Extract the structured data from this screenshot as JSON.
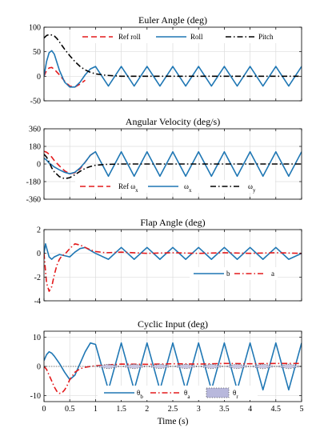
{
  "figure": {
    "xlabel": "Time (s)"
  },
  "chart_data": [
    {
      "type": "line",
      "title": "Euler Angle (deg)",
      "xlim": [
        0,
        5
      ],
      "ylim": [
        -50,
        100
      ],
      "y_ticks": [
        -50,
        0,
        50,
        100
      ],
      "y_tick_labels": [
        "-50",
        "0",
        "50",
        "100"
      ],
      "x_ticks": [
        0,
        0.5,
        1,
        1.5,
        2,
        2.5,
        3,
        3.5,
        4,
        4.5,
        5
      ],
      "x_tick_labels": [],
      "grid": true,
      "legend": "top",
      "series": [
        {
          "name": "Ref roll",
          "color": "#e41a1c",
          "style": "dash",
          "x": [
            0,
            0.05,
            0.1,
            0.15,
            0.2,
            0.3,
            0.4,
            0.5,
            0.6,
            0.7,
            0.8
          ],
          "y": [
            0,
            12,
            17,
            18,
            14,
            3,
            -10,
            -20,
            -22,
            -16,
            -8
          ]
        },
        {
          "name": "Roll",
          "color": "#1f77b4",
          "style": "solid",
          "x": [
            0,
            0.05,
            0.1,
            0.15,
            0.2,
            0.3,
            0.4,
            0.5,
            0.6,
            0.7,
            0.8,
            0.9,
            1.0,
            1.25,
            1.5,
            1.75,
            2.0,
            2.25,
            2.5,
            2.75,
            3.0,
            3.25,
            3.5,
            3.75,
            4.0,
            4.25,
            4.5,
            4.75,
            5.0
          ],
          "y": [
            0,
            30,
            48,
            52,
            45,
            12,
            -12,
            -22,
            -22,
            -12,
            3,
            15,
            20,
            -20,
            20,
            -20,
            20,
            -20,
            20,
            -20,
            20,
            -20,
            20,
            -20,
            20,
            -20,
            20,
            -20,
            20
          ]
        },
        {
          "name": "Pitch",
          "color": "#000000",
          "style": "dashdot",
          "x": [
            0,
            0.05,
            0.1,
            0.15,
            0.2,
            0.25,
            0.3,
            0.4,
            0.5,
            0.6,
            0.7,
            0.8,
            0.9,
            1.0,
            1.2,
            1.5,
            2.0,
            3.0,
            4.0,
            5.0
          ],
          "y": [
            78,
            83,
            85,
            84,
            82,
            77,
            70,
            55,
            42,
            30,
            20,
            13,
            8,
            5,
            2,
            0,
            0,
            0,
            0,
            0
          ]
        }
      ]
    },
    {
      "type": "line",
      "title": "Angular Velocity (deg/s)",
      "xlim": [
        0,
        5
      ],
      "ylim": [
        -360,
        360
      ],
      "y_ticks": [
        -360,
        -180,
        0,
        180,
        360
      ],
      "y_tick_labels": [
        "-360",
        "-180",
        "0",
        "180",
        "360"
      ],
      "x_ticks": [
        0,
        0.5,
        1,
        1.5,
        2,
        2.5,
        3,
        3.5,
        4,
        4.5,
        5
      ],
      "x_tick_labels": [],
      "grid": true,
      "legend": "bottom",
      "series": [
        {
          "name": "Ref ω",
          "subscript": "x",
          "color": "#e41a1c",
          "style": "dash",
          "x": [
            0,
            0.05,
            0.1,
            0.15,
            0.2,
            0.3,
            0.4,
            0.5,
            0.6,
            0.7,
            0.8,
            0.9,
            1.0
          ],
          "y": [
            130,
            120,
            100,
            70,
            35,
            -20,
            -70,
            -100,
            -90,
            -50,
            20,
            90,
            125
          ]
        },
        {
          "name": "ω",
          "subscript": "x",
          "color": "#1f77b4",
          "style": "solid",
          "x": [
            0,
            0.05,
            0.1,
            0.15,
            0.2,
            0.3,
            0.4,
            0.5,
            0.6,
            0.7,
            0.8,
            0.9,
            1.0,
            1.25,
            1.5,
            1.75,
            2.0,
            2.25,
            2.5,
            2.75,
            3.0,
            3.25,
            3.5,
            3.75,
            4.0,
            4.25,
            4.5,
            4.75,
            5.0
          ],
          "y": [
            60,
            40,
            10,
            -10,
            -30,
            -60,
            -85,
            -100,
            -85,
            -40,
            20,
            90,
            125,
            -125,
            125,
            -125,
            125,
            -125,
            125,
            -125,
            125,
            -125,
            125,
            -125,
            125,
            -125,
            125,
            -125,
            125
          ]
        },
        {
          "name": "ω",
          "subscript": "y",
          "color": "#000000",
          "style": "dashdot",
          "x": [
            0,
            0.05,
            0.1,
            0.15,
            0.2,
            0.3,
            0.4,
            0.5,
            0.6,
            0.7,
            0.8,
            0.9,
            1.0,
            1.2,
            1.5,
            2.0,
            3.0,
            4.0,
            5.0
          ],
          "y": [
            100,
            70,
            20,
            -40,
            -80,
            -130,
            -150,
            -140,
            -110,
            -75,
            -45,
            -25,
            -12,
            -4,
            0,
            0,
            0,
            0,
            0
          ]
        }
      ]
    },
    {
      "type": "line",
      "title": "Flap Angle (deg)",
      "xlim": [
        0,
        5
      ],
      "ylim": [
        -4,
        2
      ],
      "y_ticks": [
        -4,
        -2,
        0,
        2
      ],
      "y_tick_labels": [
        "-4",
        "-2",
        "0",
        "2"
      ],
      "x_ticks": [
        0,
        0.5,
        1,
        1.5,
        2,
        2.5,
        3,
        3.5,
        4,
        4.5,
        5
      ],
      "x_tick_labels": [],
      "grid": true,
      "legend": "right",
      "series": [
        {
          "name": "b",
          "color": "#1f77b4",
          "style": "solid",
          "x": [
            0,
            0.03,
            0.06,
            0.1,
            0.15,
            0.2,
            0.3,
            0.4,
            0.5,
            0.6,
            0.7,
            0.8,
            1.0,
            1.25,
            1.5,
            1.75,
            2.0,
            2.25,
            2.5,
            2.75,
            3.0,
            3.25,
            3.5,
            3.75,
            4.0,
            4.25,
            4.5,
            4.75,
            5.0
          ],
          "y": [
            0,
            0.8,
            0.3,
            -0.3,
            -0.5,
            -0.3,
            -0.1,
            -0.2,
            -0.3,
            0.1,
            0.4,
            0.5,
            0,
            -0.5,
            0.5,
            -0.5,
            0.5,
            -0.5,
            0.5,
            -0.5,
            0.5,
            -0.5,
            0.5,
            -0.5,
            0.5,
            -0.5,
            0.5,
            -0.5,
            0
          ]
        },
        {
          "name": "a",
          "color": "#e41a1c",
          "style": "dashdot",
          "x": [
            0,
            0.05,
            0.1,
            0.15,
            0.2,
            0.25,
            0.3,
            0.35,
            0.4,
            0.5,
            0.6,
            0.7,
            0.8,
            0.9,
            1.0,
            1.2,
            1.5,
            2.0,
            2.5,
            3.0,
            3.5,
            4.0,
            4.5,
            5.0
          ],
          "y": [
            0,
            -2.5,
            -3.2,
            -2.8,
            -1.8,
            -1.0,
            -0.5,
            -0.2,
            -0.1,
            0.4,
            0.8,
            0.7,
            0.5,
            0.3,
            0.15,
            0.05,
            0.1,
            0,
            0.05,
            0,
            0.05,
            0,
            0.05,
            0
          ]
        }
      ]
    },
    {
      "type": "line",
      "title": "Cyclic Input (deg)",
      "xlim": [
        0,
        5
      ],
      "ylim": [
        -12,
        12
      ],
      "y_ticks": [
        -10,
        0,
        10
      ],
      "y_tick_labels": [
        "-10",
        "0",
        "10"
      ],
      "x_ticks": [
        0,
        0.5,
        1,
        1.5,
        2,
        2.5,
        3,
        3.5,
        4,
        4.5,
        5
      ],
      "x_tick_labels": [
        "0",
        "0.5",
        "1",
        "1.5",
        "2",
        "2.5",
        "3",
        "3.5",
        "4",
        "4.5",
        "5"
      ],
      "grid": true,
      "legend": "bottom",
      "series": [
        {
          "name": "θ",
          "subscript": "b",
          "color": "#1f77b4",
          "style": "solid",
          "x": [
            0,
            0.05,
            0.1,
            0.15,
            0.2,
            0.3,
            0.4,
            0.5,
            0.6,
            0.7,
            0.8,
            0.9,
            1.0,
            1.25,
            1.5,
            1.75,
            2.0,
            2.25,
            2.5,
            2.75,
            3.0,
            3.25,
            3.5,
            3.75,
            4.0,
            4.25,
            4.5,
            4.75,
            5.0
          ],
          "y": [
            2,
            4,
            5,
            4.5,
            3.5,
            1,
            -2,
            -4.5,
            -3,
            1,
            5,
            8,
            7.5,
            -8,
            8,
            -8,
            8,
            -8,
            8,
            -8,
            8,
            -8,
            8,
            -8,
            8,
            -8,
            8,
            -8,
            8
          ]
        },
        {
          "name": "θ",
          "subscript": "a",
          "color": "#e41a1c",
          "style": "dashdot",
          "x": [
            0,
            0.05,
            0.1,
            0.15,
            0.2,
            0.25,
            0.3,
            0.35,
            0.4,
            0.45,
            0.5,
            0.6,
            0.7,
            0.8,
            0.9,
            1.0,
            1.2,
            1.5,
            2.0,
            2.5,
            3.0,
            3.5,
            4.0,
            4.5,
            5.0
          ],
          "y": [
            0,
            -1,
            -3,
            -5,
            -7,
            -8.5,
            -9.2,
            -9,
            -8,
            -6.5,
            -4.5,
            -2,
            -0.8,
            -0.3,
            0,
            0.2,
            0.5,
            0.8,
            0.7,
            0.9,
            0.8,
            1,
            0.9,
            1,
            1
          ]
        },
        {
          "name": "θ",
          "subscript": "r",
          "color": "#9a9acb",
          "style": "dotted-band",
          "x": [
            0,
            1.0,
            1.25,
            1.5,
            1.75,
            2.0,
            2.25,
            2.5,
            2.75,
            3.0,
            3.25,
            3.5,
            3.75,
            4.0,
            4.25,
            4.5,
            4.75,
            5.0
          ],
          "y": [
            0,
            0,
            0.8,
            0,
            -0.8,
            0,
            0.8,
            0,
            -0.8,
            0,
            0.8,
            0,
            -0.8,
            0,
            0.8,
            0,
            -0.8,
            0
          ]
        }
      ]
    }
  ]
}
